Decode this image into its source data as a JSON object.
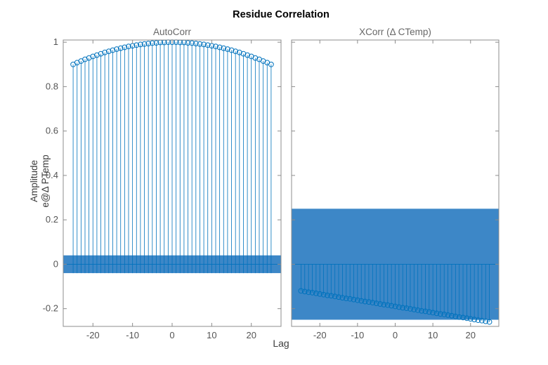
{
  "figure": {
    "title": "Residue Correlation",
    "xlabel": "Lag",
    "ylabel": [
      "Amplitude",
      "e@Δ PTemp"
    ]
  },
  "colors": {
    "stem": "#0072BD",
    "band": "#3D87C7",
    "axis": "#8c8c8c",
    "tick_label": "#545454",
    "subplot_title": "#676767",
    "figure_title": "#000000"
  },
  "chart_data": [
    {
      "type": "stem",
      "title": "AutoCorr",
      "xlim": [
        -27.5,
        27.5
      ],
      "ylim": [
        -0.28,
        1.01
      ],
      "x_ticks": [
        -20,
        -10,
        0,
        10,
        20
      ],
      "y_ticks": [
        -0.2,
        0,
        0.2,
        0.4,
        0.6,
        0.8,
        1
      ],
      "y_tick_labels": [
        "-0.2",
        "0",
        "0.2",
        "0.4",
        "0.6",
        "0.8",
        "1"
      ],
      "confidence_band": [
        -0.04,
        0.04
      ],
      "stem_base": -0.04,
      "lags": [
        -25,
        -24,
        -23,
        -22,
        -21,
        -20,
        -19,
        -18,
        -17,
        -16,
        -15,
        -14,
        -13,
        -12,
        -11,
        -10,
        -9,
        -8,
        -7,
        -6,
        -5,
        -4,
        -3,
        -2,
        -1,
        0,
        1,
        2,
        3,
        4,
        5,
        6,
        7,
        8,
        9,
        10,
        11,
        12,
        13,
        14,
        15,
        16,
        17,
        18,
        19,
        20,
        21,
        22,
        23,
        24,
        25
      ],
      "values": [
        0.9,
        0.908,
        0.915,
        0.923,
        0.929,
        0.936,
        0.942,
        0.948,
        0.954,
        0.959,
        0.964,
        0.969,
        0.973,
        0.977,
        0.981,
        0.984,
        0.987,
        0.99,
        0.992,
        0.994,
        0.996,
        0.997,
        0.999,
        0.999,
        1.0,
        1.0,
        1.0,
        0.999,
        0.999,
        0.997,
        0.996,
        0.994,
        0.992,
        0.99,
        0.987,
        0.984,
        0.981,
        0.977,
        0.973,
        0.969,
        0.964,
        0.959,
        0.954,
        0.948,
        0.942,
        0.936,
        0.929,
        0.923,
        0.915,
        0.908,
        0.9
      ]
    },
    {
      "type": "stem",
      "title": "XCorr (Δ CTemp)",
      "xlim": [
        -27.5,
        27.5
      ],
      "ylim": [
        -0.28,
        1.01
      ],
      "x_ticks": [
        -20,
        -10,
        0,
        10,
        20
      ],
      "y_ticks": [
        -0.2,
        0,
        0.2,
        0.4,
        0.6,
        0.8,
        1
      ],
      "y_tick_labels": [],
      "confidence_band": [
        -0.25,
        0.25
      ],
      "stem_base": 0,
      "lags": [
        -25,
        -24,
        -23,
        -22,
        -21,
        -20,
        -19,
        -18,
        -17,
        -16,
        -15,
        -14,
        -13,
        -12,
        -11,
        -10,
        -9,
        -8,
        -7,
        -6,
        -5,
        -4,
        -3,
        -2,
        -1,
        0,
        1,
        2,
        3,
        4,
        5,
        6,
        7,
        8,
        9,
        10,
        11,
        12,
        13,
        14,
        15,
        16,
        17,
        18,
        19,
        20,
        21,
        22,
        23,
        24,
        25
      ],
      "values": [
        -0.12,
        -0.123,
        -0.126,
        -0.128,
        -0.131,
        -0.134,
        -0.137,
        -0.14,
        -0.142,
        -0.145,
        -0.148,
        -0.151,
        -0.154,
        -0.156,
        -0.159,
        -0.162,
        -0.165,
        -0.168,
        -0.17,
        -0.173,
        -0.176,
        -0.179,
        -0.182,
        -0.184,
        -0.187,
        -0.19,
        -0.193,
        -0.196,
        -0.198,
        -0.201,
        -0.204,
        -0.207,
        -0.21,
        -0.212,
        -0.215,
        -0.218,
        -0.221,
        -0.224,
        -0.226,
        -0.229,
        -0.232,
        -0.235,
        -0.238,
        -0.24,
        -0.243,
        -0.246,
        -0.249,
        -0.252,
        -0.254,
        -0.257,
        -0.26
      ]
    }
  ]
}
